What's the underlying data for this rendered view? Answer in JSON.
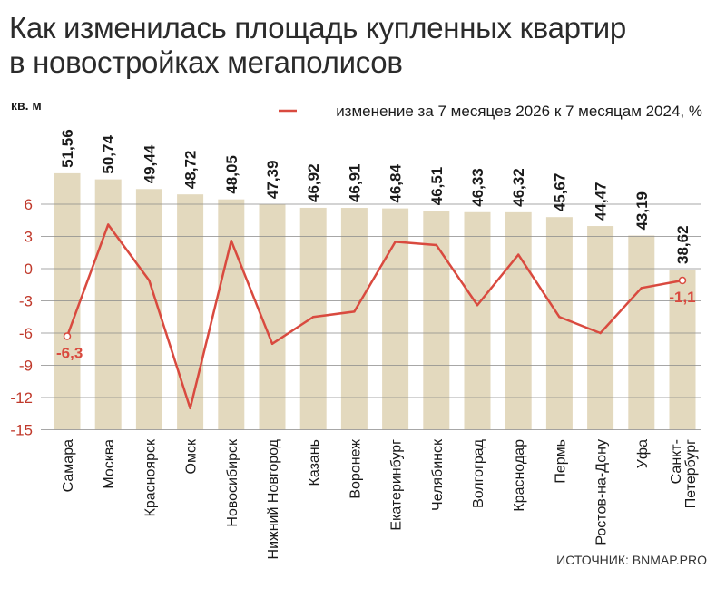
{
  "title_line1": "Как изменилась площадь купленных квартир",
  "title_line2": "в новостройках мегаполисов",
  "source": "ИСТОЧНИК: BNMAP.PRO",
  "colors": {
    "bar": "#e3d9be",
    "line": "#d94a3f",
    "text": "#1a1a1a",
    "axis_label": "#c0392b",
    "grid": "#8a8a8a"
  },
  "chart_data": {
    "type": "bar+line",
    "units_label": "кв. м",
    "legend": {
      "line_label": "изменение за 7 месяцев 2026 к 7 месяцам 2024, %",
      "position": "top-right"
    },
    "categories": [
      "Самара",
      "Москва",
      "Красноярск",
      "Омск",
      "Новосибирск",
      "Нижний Новгород",
      "Казань",
      "Воронеж",
      "Екатеринбург",
      "Челябинск",
      "Волгоград",
      "Краснодар",
      "Пермь",
      "Ростов-на-Дону",
      "Уфа",
      "Санкт-Петербург"
    ],
    "bars": {
      "values": [
        51.56,
        50.74,
        49.44,
        48.72,
        48.05,
        47.39,
        46.92,
        46.91,
        46.84,
        46.51,
        46.33,
        46.32,
        45.67,
        44.47,
        43.19,
        38.62
      ],
      "labels": [
        "51,56",
        "50,74",
        "49,44",
        "48,72",
        "48,05",
        "47,39",
        "46,92",
        "46,91",
        "46,84",
        "46,51",
        "46,33",
        "46,32",
        "45,67",
        "44,47",
        "43,19",
        "38,62"
      ]
    },
    "line": {
      "values": [
        -6.3,
        4.1,
        -1.1,
        -13.0,
        2.6,
        -7.0,
        -4.5,
        -4.0,
        2.5,
        2.2,
        -3.4,
        1.3,
        -4.5,
        -6.0,
        -1.8,
        -1.1
      ],
      "annotations": [
        {
          "index": 0,
          "text": "-6,3"
        },
        {
          "index": 15,
          "text": "-1,1"
        }
      ]
    },
    "y_axis": {
      "ticks": [
        6,
        3,
        0,
        -3,
        -6,
        -9,
        -12,
        -15
      ],
      "tick_labels": [
        "6",
        "3",
        "0",
        "-3",
        "-6",
        "-9",
        "-12",
        "-15"
      ],
      "range": [
        -15,
        6
      ]
    },
    "grid": true
  }
}
